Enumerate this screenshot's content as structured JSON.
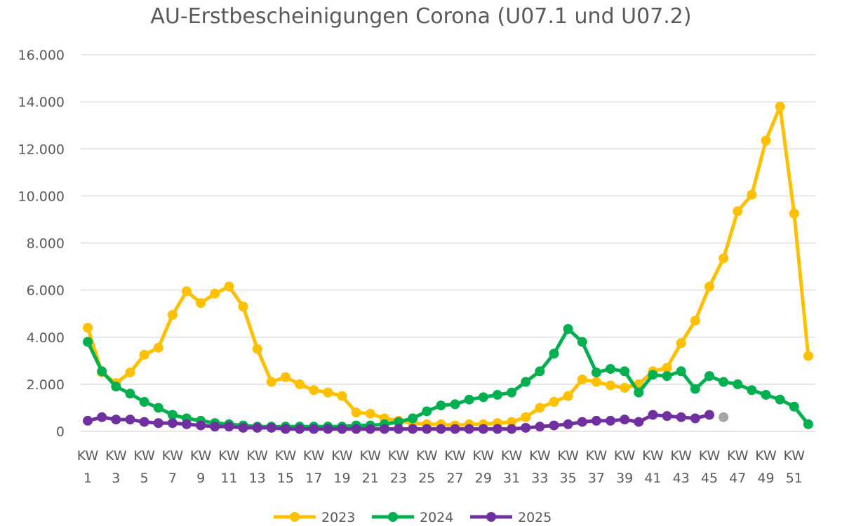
{
  "chart_data": {
    "type": "line",
    "title": "AU-Erstbescheinigungen Corona (U07.1 und U07.2)",
    "xlabel": "",
    "ylabel": "",
    "ylim": [
      0,
      16000
    ],
    "y_ticks": [
      0,
      2000,
      4000,
      6000,
      8000,
      10000,
      12000,
      14000,
      16000
    ],
    "y_tick_labels": [
      "0",
      "2.000",
      "4.000",
      "6.000",
      "8.000",
      "10.000",
      "12.000",
      "14.000",
      "16.000"
    ],
    "x_tick_prefix": "KW",
    "x_tick_numbers": [
      "1",
      "3",
      "5",
      "7",
      "9",
      "11",
      "13",
      "15",
      "17",
      "19",
      "21",
      "23",
      "25",
      "27",
      "29",
      "31",
      "33",
      "35",
      "37",
      "39",
      "41",
      "43",
      "45",
      "47",
      "49",
      "51"
    ],
    "x_range": [
      1,
      52
    ],
    "grid": true,
    "legend_position": "bottom",
    "series": [
      {
        "name": "2023",
        "color": "#FFC000",
        "x": [
          1,
          2,
          3,
          4,
          5,
          6,
          7,
          8,
          9,
          10,
          11,
          12,
          13,
          14,
          15,
          16,
          17,
          18,
          19,
          20,
          21,
          22,
          23,
          24,
          25,
          26,
          27,
          28,
          29,
          30,
          31,
          32,
          33,
          34,
          35,
          36,
          37,
          38,
          39,
          40,
          41,
          42,
          43,
          44,
          45,
          46,
          47,
          48,
          49,
          50,
          51,
          52
        ],
        "values": [
          4400,
          2500,
          2050,
          2500,
          3250,
          3550,
          4950,
          5950,
          5450,
          5850,
          6150,
          5300,
          3500,
          2100,
          2300,
          2000,
          1750,
          1650,
          1500,
          800,
          750,
          550,
          450,
          350,
          300,
          300,
          250,
          300,
          300,
          350,
          400,
          600,
          1000,
          1250,
          1500,
          2200,
          2100,
          1950,
          1850,
          2000,
          2550,
          2700,
          3750,
          4700,
          6150,
          7350,
          9350,
          10050,
          12350,
          13800,
          9250,
          3200
        ]
      },
      {
        "name": "2024",
        "color": "#00B050",
        "x": [
          1,
          2,
          3,
          4,
          5,
          6,
          7,
          8,
          9,
          10,
          11,
          12,
          13,
          14,
          15,
          16,
          17,
          18,
          19,
          20,
          21,
          22,
          23,
          24,
          25,
          26,
          27,
          28,
          29,
          30,
          31,
          32,
          33,
          34,
          35,
          36,
          37,
          38,
          39,
          40,
          41,
          42,
          43,
          44,
          45,
          46,
          47,
          48,
          49,
          50,
          51,
          52
        ],
        "values": [
          3800,
          2550,
          1900,
          1600,
          1250,
          1000,
          700,
          550,
          450,
          350,
          300,
          250,
          200,
          200,
          200,
          200,
          200,
          200,
          200,
          250,
          250,
          300,
          400,
          550,
          850,
          1100,
          1150,
          1350,
          1450,
          1550,
          1650,
          2100,
          2550,
          3300,
          4350,
          3800,
          2500,
          2650,
          2550,
          1650,
          2400,
          2350,
          2550,
          1800,
          2350,
          2100,
          2000,
          1750,
          1550,
          1350,
          1050,
          300
        ]
      },
      {
        "name": "2025",
        "color": "#7030A0",
        "x": [
          1,
          2,
          3,
          4,
          5,
          6,
          7,
          8,
          9,
          10,
          11,
          12,
          13,
          14,
          15,
          16,
          17,
          18,
          19,
          20,
          21,
          22,
          23,
          24,
          25,
          26,
          27,
          28,
          29,
          30,
          31,
          32,
          33,
          34,
          35,
          36,
          37,
          38,
          39,
          40,
          41,
          42,
          43,
          44,
          45
        ],
        "values": [
          450,
          600,
          500,
          500,
          400,
          350,
          350,
          300,
          250,
          200,
          200,
          150,
          150,
          150,
          100,
          100,
          100,
          100,
          100,
          100,
          100,
          100,
          100,
          100,
          100,
          100,
          100,
          100,
          100,
          100,
          100,
          150,
          200,
          250,
          300,
          400,
          450,
          450,
          500,
          400,
          700,
          650,
          600,
          550,
          700
        ]
      },
      {
        "name": "",
        "color": "#A6A6A6",
        "x": [
          46
        ],
        "values": [
          600
        ]
      }
    ]
  }
}
